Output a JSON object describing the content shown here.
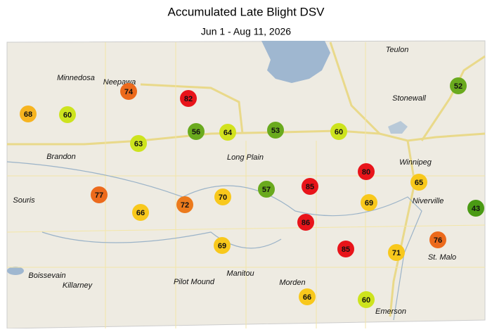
{
  "header": {
    "title": "Accumulated Late Blight DSV",
    "subtitle": "Jun 1 - Aug 11, 2026"
  },
  "places": [
    "Teulon",
    "Minnedosa",
    "Neepawa",
    "Stonewall",
    "Winnipeg",
    "Brandon",
    "Long Plain",
    "Souris",
    "Niverville",
    "St. Malo",
    "Boissevain",
    "Killarney",
    "Pilot Mound",
    "Manitou",
    "Morden",
    "Emerson"
  ],
  "stations": [
    {
      "value": 74,
      "color": "#ec6a1c"
    },
    {
      "value": 82,
      "color": "#e8141a"
    },
    {
      "value": 68,
      "color": "#f6b420"
    },
    {
      "value": 60,
      "color": "#cde31e"
    },
    {
      "value": 56,
      "color": "#6aaa1e"
    },
    {
      "value": 64,
      "color": "#d2e21e"
    },
    {
      "value": 53,
      "color": "#6aaa1e"
    },
    {
      "value": 60,
      "color": "#cde31e"
    },
    {
      "value": 63,
      "color": "#cde31e"
    },
    {
      "value": 52,
      "color": "#6aaa1e"
    },
    {
      "value": 80,
      "color": "#e8141a"
    },
    {
      "value": 65,
      "color": "#f8c81c"
    },
    {
      "value": 77,
      "color": "#ec6a1c"
    },
    {
      "value": 57,
      "color": "#6aaa1e"
    },
    {
      "value": 85,
      "color": "#e8141a"
    },
    {
      "value": 70,
      "color": "#f8c81c"
    },
    {
      "value": 72,
      "color": "#ec7a1c"
    },
    {
      "value": 66,
      "color": "#f8c81c"
    },
    {
      "value": 69,
      "color": "#f8c81c"
    },
    {
      "value": 43,
      "color": "#4a9a14"
    },
    {
      "value": 86,
      "color": "#e8141a"
    },
    {
      "value": 69,
      "color": "#f8c81c"
    },
    {
      "value": 85,
      "color": "#e8141a"
    },
    {
      "value": 71,
      "color": "#f8c81c"
    },
    {
      "value": 76,
      "color": "#ec6a1c"
    },
    {
      "value": 66,
      "color": "#f8c81c"
    },
    {
      "value": 60,
      "color": "#cde31e"
    }
  ]
}
